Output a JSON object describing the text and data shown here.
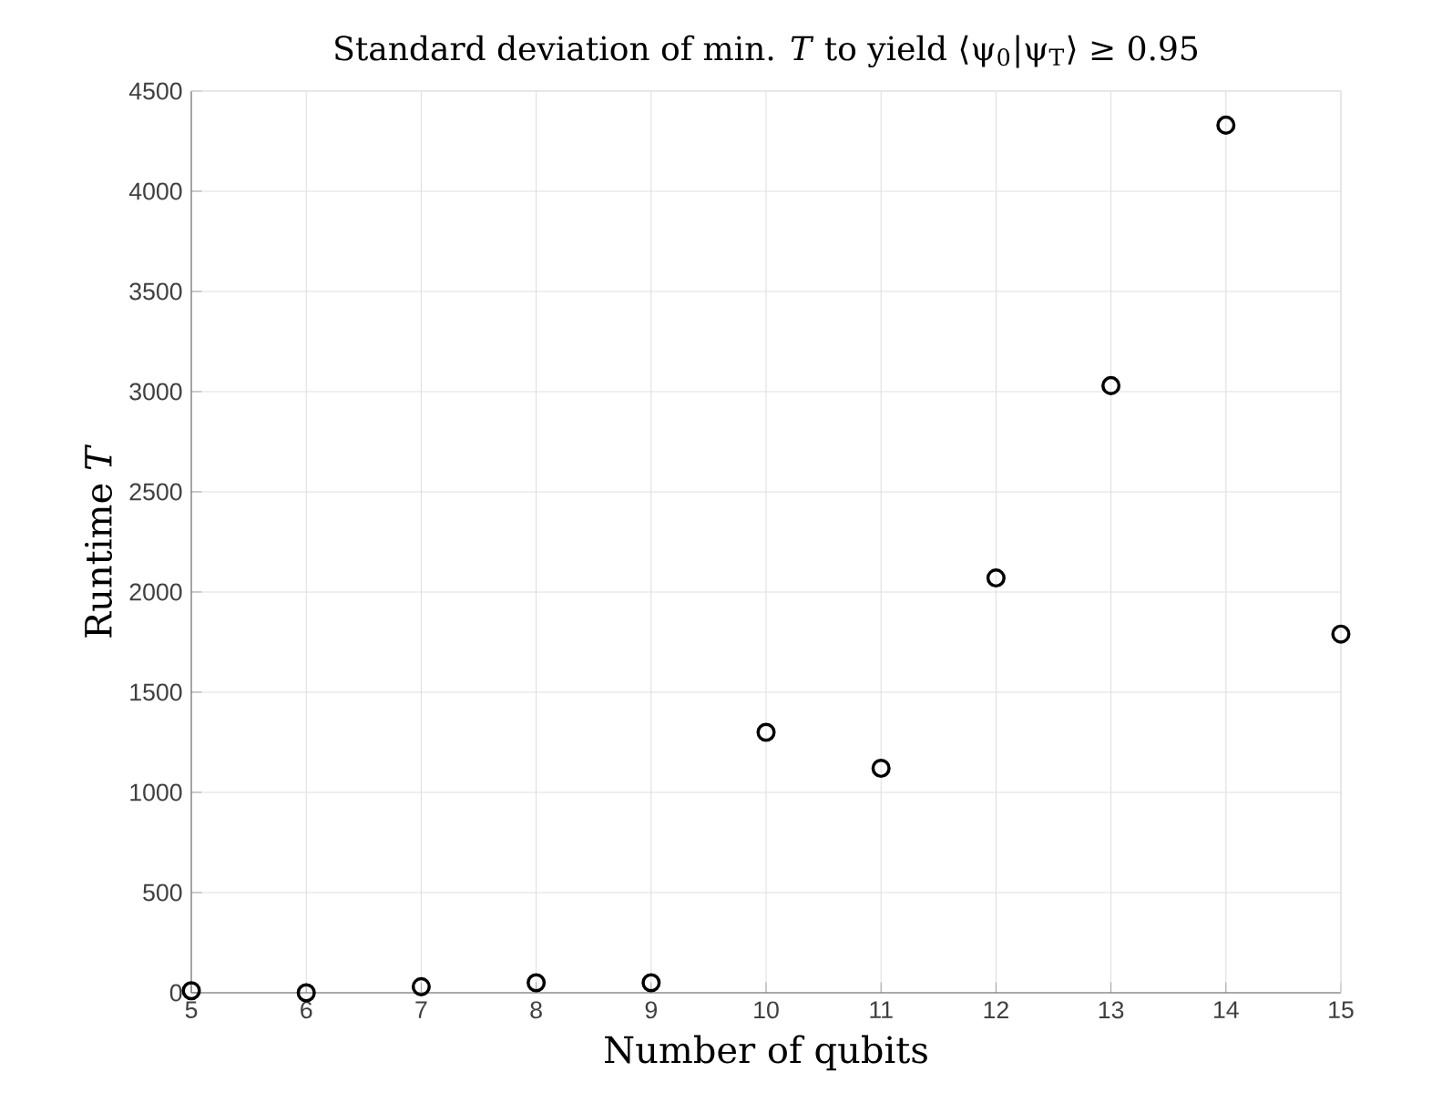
{
  "chart_data": {
    "type": "scatter",
    "title": "Standard deviation of min. *T* to yield ⟨ψ$_{0}$|ψ$_{T}$⟩ ≥ 0.95",
    "xlabel": "Number of qubits",
    "ylabel": "Runtime *T*",
    "x": [
      5,
      6,
      7,
      8,
      9,
      10,
      11,
      12,
      13,
      14,
      15
    ],
    "series": [
      {
        "color": "#000000",
        "values": [
          10,
          0,
          30,
          50,
          50,
          1300,
          1120,
          2070,
          3030,
          4330,
          1790
        ]
      }
    ],
    "xlim": [
      5,
      15
    ],
    "xticks": [
      5,
      6,
      7,
      8,
      9,
      10,
      11,
      12,
      13,
      14,
      15
    ],
    "ylim": [
      0,
      4500
    ],
    "yticks": [
      0,
      500,
      1000,
      1500,
      2000,
      2500,
      3000,
      3500,
      4000,
      4500
    ],
    "grid": true,
    "marker": "circle"
  }
}
